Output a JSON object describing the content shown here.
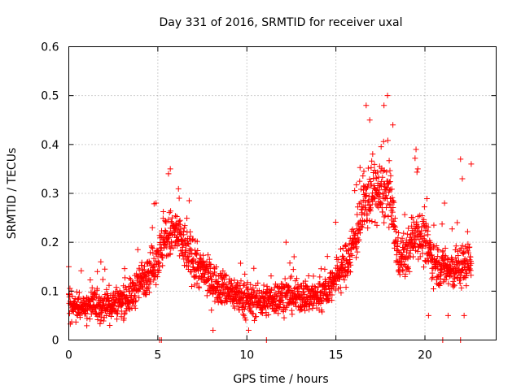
{
  "chart_data": {
    "type": "scatter",
    "title": "Day 331 of 2016, SRMTID for receiver uxal",
    "xlabel": "GPS time / hours",
    "ylabel": "SRMTID / TECUs",
    "xlim": [
      0,
      24
    ],
    "ylim": [
      0,
      0.6
    ],
    "xticks": [
      0,
      5,
      10,
      15,
      20
    ],
    "xtick_labels": [
      "0",
      "5",
      "10",
      "15",
      "20"
    ],
    "yticks": [
      0,
      0.1,
      0.2,
      0.3,
      0.4,
      0.5,
      0.6
    ],
    "ytick_labels": [
      "0",
      "0.1",
      "0.2",
      "0.3",
      "0.4",
      "0.5",
      "0.6"
    ],
    "grid": true,
    "marker": "+",
    "color": "#ff0000",
    "envelope": [
      {
        "x": 0.0,
        "y": 0.07
      },
      {
        "x": 1.0,
        "y": 0.07
      },
      {
        "x": 2.0,
        "y": 0.07
      },
      {
        "x": 3.0,
        "y": 0.08
      },
      {
        "x": 3.5,
        "y": 0.09
      },
      {
        "x": 4.0,
        "y": 0.12
      },
      {
        "x": 4.5,
        "y": 0.14
      },
      {
        "x": 5.0,
        "y": 0.17
      },
      {
        "x": 5.5,
        "y": 0.21
      },
      {
        "x": 6.0,
        "y": 0.22
      },
      {
        "x": 6.5,
        "y": 0.19
      },
      {
        "x": 7.0,
        "y": 0.16
      },
      {
        "x": 7.5,
        "y": 0.14
      },
      {
        "x": 8.0,
        "y": 0.12
      },
      {
        "x": 9.0,
        "y": 0.1
      },
      {
        "x": 10.0,
        "y": 0.08
      },
      {
        "x": 11.0,
        "y": 0.08
      },
      {
        "x": 12.0,
        "y": 0.09
      },
      {
        "x": 13.0,
        "y": 0.09
      },
      {
        "x": 14.0,
        "y": 0.09
      },
      {
        "x": 14.5,
        "y": 0.1
      },
      {
        "x": 15.0,
        "y": 0.13
      },
      {
        "x": 15.5,
        "y": 0.15
      },
      {
        "x": 16.0,
        "y": 0.2
      },
      {
        "x": 16.5,
        "y": 0.26
      },
      {
        "x": 17.0,
        "y": 0.31
      },
      {
        "x": 17.5,
        "y": 0.3
      },
      {
        "x": 18.0,
        "y": 0.3
      },
      {
        "x": 18.5,
        "y": 0.17
      },
      {
        "x": 19.0,
        "y": 0.17
      },
      {
        "x": 19.5,
        "y": 0.23
      },
      {
        "x": 20.0,
        "y": 0.2
      },
      {
        "x": 20.5,
        "y": 0.16
      },
      {
        "x": 21.0,
        "y": 0.15
      },
      {
        "x": 21.5,
        "y": 0.14
      },
      {
        "x": 22.0,
        "y": 0.15
      },
      {
        "x": 22.5,
        "y": 0.16
      },
      {
        "x": 22.6,
        "y": 0.17
      }
    ],
    "spread": 0.06,
    "notable_points": [
      {
        "x": 17.9,
        "y": 0.5
      },
      {
        "x": 17.7,
        "y": 0.48
      },
      {
        "x": 16.7,
        "y": 0.48
      },
      {
        "x": 16.9,
        "y": 0.45
      },
      {
        "x": 18.2,
        "y": 0.44
      },
      {
        "x": 19.5,
        "y": 0.39
      },
      {
        "x": 22.0,
        "y": 0.37
      },
      {
        "x": 22.6,
        "y": 0.36
      },
      {
        "x": 5.7,
        "y": 0.35
      },
      {
        "x": 19.6,
        "y": 0.35
      },
      {
        "x": 5.6,
        "y": 0.34
      },
      {
        "x": 22.1,
        "y": 0.33
      },
      {
        "x": 4.9,
        "y": 0.28
      },
      {
        "x": 21.1,
        "y": 0.28
      },
      {
        "x": 6.2,
        "y": 0.29
      },
      {
        "x": 12.2,
        "y": 0.2
      },
      {
        "x": 1.8,
        "y": 0.16
      },
      {
        "x": 0.0,
        "y": 0.15
      },
      {
        "x": 8.1,
        "y": 0.02
      },
      {
        "x": 10.1,
        "y": 0.02
      },
      {
        "x": 2.3,
        "y": 0.03
      },
      {
        "x": 5.1,
        "y": 0.0
      },
      {
        "x": 5.2,
        "y": 0.0
      },
      {
        "x": 11.1,
        "y": 0.0
      },
      {
        "x": 21.0,
        "y": 0.0
      },
      {
        "x": 22.0,
        "y": 0.0
      },
      {
        "x": 21.3,
        "y": 0.05
      },
      {
        "x": 20.2,
        "y": 0.05
      },
      {
        "x": 22.2,
        "y": 0.05
      }
    ]
  }
}
